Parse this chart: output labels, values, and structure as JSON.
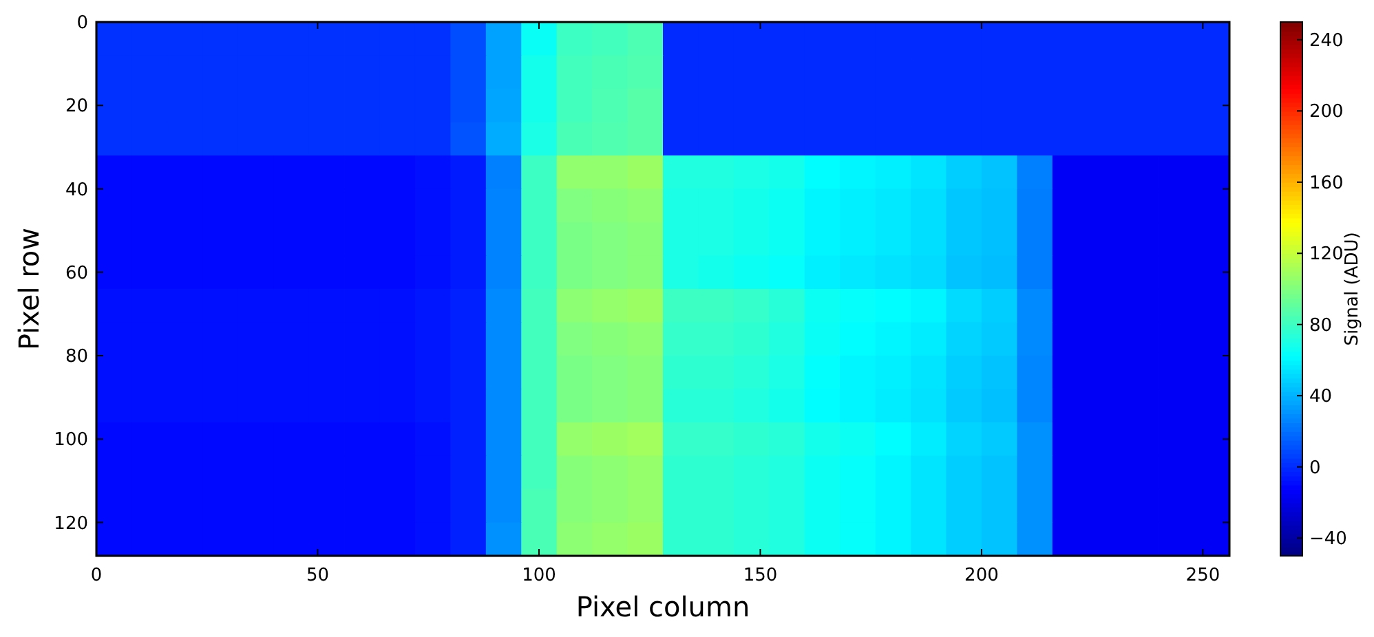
{
  "chart_data": {
    "type": "heatmap",
    "xlabel": "Pixel column",
    "ylabel": "Pixel row",
    "clabel": "Signal (ADU)",
    "xlim": [
      0,
      256
    ],
    "ylim": [
      128,
      0
    ],
    "xticks": [
      0,
      50,
      100,
      150,
      200,
      250
    ],
    "yticks": [
      0,
      20,
      40,
      60,
      80,
      100,
      120
    ],
    "clim": [
      -50,
      250
    ],
    "cticks": [
      -40,
      0,
      40,
      80,
      120,
      160,
      200,
      240
    ],
    "cells": [
      [
        2,
        2,
        2,
        2,
        2,
        2,
        2,
        2,
        2,
        2,
        10,
        35,
        65,
        80,
        82,
        85,
        0,
        0,
        0,
        0,
        0,
        0,
        0,
        0,
        0,
        0,
        0,
        0,
        0,
        0,
        0,
        0
      ],
      [
        2,
        2,
        2,
        2,
        2,
        2,
        2,
        2,
        2,
        2,
        10,
        35,
        68,
        82,
        84,
        86,
        0,
        0,
        0,
        0,
        0,
        0,
        0,
        0,
        0,
        0,
        0,
        0,
        0,
        0,
        0,
        0
      ],
      [
        2,
        2,
        2,
        2,
        2,
        2,
        2,
        2,
        2,
        2,
        10,
        36,
        68,
        82,
        85,
        88,
        0,
        0,
        0,
        0,
        0,
        0,
        0,
        0,
        0,
        0,
        0,
        0,
        0,
        0,
        0,
        0
      ],
      [
        2,
        2,
        2,
        2,
        2,
        2,
        2,
        2,
        2,
        2,
        12,
        38,
        70,
        84,
        86,
        88,
        0,
        0,
        0,
        0,
        0,
        0,
        0,
        0,
        0,
        0,
        0,
        0,
        0,
        0,
        0,
        0
      ],
      [
        -10,
        -10,
        -10,
        -10,
        -10,
        -10,
        -10,
        -10,
        -10,
        -8,
        -5,
        25,
        80,
        105,
        105,
        108,
        72,
        72,
        70,
        68,
        62,
        60,
        58,
        55,
        48,
        45,
        25,
        -15,
        -15,
        -15,
        -15,
        -15
      ],
      [
        -10,
        -10,
        -10,
        -10,
        -10,
        -10,
        -10,
        -10,
        -10,
        -8,
        -5,
        26,
        80,
        100,
        102,
        104,
        70,
        70,
        68,
        66,
        60,
        58,
        56,
        53,
        46,
        44,
        24,
        -15,
        -15,
        -15,
        -15,
        -15
      ],
      [
        -10,
        -10,
        -10,
        -10,
        -10,
        -10,
        -10,
        -10,
        -10,
        -8,
        -5,
        26,
        80,
        98,
        100,
        102,
        70,
        70,
        68,
        66,
        60,
        58,
        56,
        53,
        46,
        44,
        24,
        -15,
        -15,
        -15,
        -15,
        -15
      ],
      [
        -10,
        -10,
        -10,
        -10,
        -10,
        -10,
        -10,
        -10,
        -10,
        -8,
        -5,
        26,
        80,
        98,
        100,
        102,
        70,
        68,
        66,
        64,
        58,
        56,
        54,
        52,
        45,
        43,
        24,
        -15,
        -15,
        -15,
        -15,
        -15
      ],
      [
        -8,
        -8,
        -8,
        -8,
        -8,
        -8,
        -8,
        -8,
        -8,
        -6,
        -3,
        28,
        82,
        104,
        106,
        108,
        80,
        80,
        78,
        74,
        66,
        64,
        62,
        60,
        52,
        48,
        28,
        -15,
        -15,
        -15,
        -15,
        -15
      ],
      [
        -8,
        -8,
        -8,
        -8,
        -8,
        -8,
        -8,
        -8,
        -8,
        -6,
        -3,
        28,
        82,
        100,
        102,
        104,
        78,
        78,
        76,
        72,
        65,
        62,
        60,
        57,
        50,
        47,
        28,
        -15,
        -15,
        -15,
        -15,
        -15
      ],
      [
        -8,
        -8,
        -8,
        -8,
        -8,
        -8,
        -8,
        -8,
        -8,
        -6,
        -3,
        28,
        82,
        98,
        100,
        102,
        76,
        76,
        74,
        70,
        63,
        60,
        58,
        55,
        48,
        45,
        27,
        -15,
        -15,
        -15,
        -15,
        -15
      ],
      [
        -8,
        -8,
        -8,
        -8,
        -8,
        -8,
        -8,
        -8,
        -8,
        -6,
        -3,
        28,
        82,
        98,
        100,
        102,
        74,
        74,
        72,
        68,
        62,
        60,
        57,
        54,
        47,
        44,
        27,
        -15,
        -15,
        -15,
        -15,
        -15
      ],
      [
        -10,
        -10,
        -10,
        -10,
        -10,
        -10,
        -10,
        -10,
        -10,
        -8,
        -3,
        28,
        82,
        106,
        108,
        110,
        78,
        78,
        76,
        74,
        68,
        66,
        62,
        57,
        50,
        47,
        30,
        -15,
        -15,
        -15,
        -15,
        -15
      ],
      [
        -10,
        -10,
        -10,
        -10,
        -10,
        -10,
        -10,
        -10,
        -10,
        -8,
        -3,
        28,
        82,
        102,
        104,
        106,
        76,
        76,
        74,
        72,
        66,
        64,
        60,
        55,
        48,
        45,
        30,
        -15,
        -15,
        -15,
        -15,
        -15
      ],
      [
        -10,
        -10,
        -10,
        -10,
        -10,
        -10,
        -10,
        -10,
        -10,
        -8,
        -3,
        28,
        84,
        102,
        104,
        106,
        76,
        76,
        74,
        72,
        66,
        64,
        60,
        55,
        48,
        45,
        30,
        -15,
        -15,
        -15,
        -15,
        -15
      ],
      [
        -10,
        -10,
        -10,
        -10,
        -10,
        -10,
        -10,
        -10,
        -10,
        -8,
        -3,
        30,
        84,
        104,
        106,
        108,
        76,
        76,
        74,
        72,
        66,
        64,
        60,
        55,
        48,
        45,
        30,
        -15,
        -15,
        -15,
        -15,
        -15
      ]
    ]
  }
}
